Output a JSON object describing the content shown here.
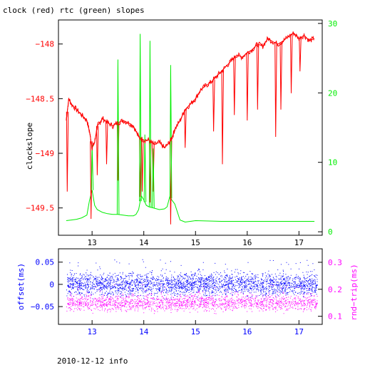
{
  "title": "clock (red) rtc (green) slopes",
  "footer": "2010-12-12 info",
  "colors": {
    "red": "#ff0000",
    "green": "#00ee00",
    "blue": "#0000ff",
    "magenta": "#ff00ff",
    "axis": "#000000"
  },
  "chart_data": [
    {
      "type": "line",
      "name": "top",
      "xlim": [
        12.35,
        17.45
      ],
      "x_ticks": [
        13,
        14,
        15,
        16,
        17
      ],
      "left_axis": {
        "label": "clockslope",
        "ylim": [
          -149.75,
          -147.78
        ],
        "ticks": [
          {
            "value": -148,
            "label": "−148"
          },
          {
            "value": -148.5,
            "label": "−148.5"
          },
          {
            "value": -149,
            "label": "−149"
          },
          {
            "value": -149.5,
            "label": "−149.5"
          }
        ]
      },
      "right_axis": {
        "ylim": [
          -0.5,
          30.5
        ],
        "ticks": [
          {
            "value": 0,
            "label": "0"
          },
          {
            "value": 10,
            "label": "10"
          },
          {
            "value": 20,
            "label": "20"
          },
          {
            "value": 30,
            "label": "30"
          }
        ]
      },
      "series": [
        {
          "color": "red",
          "axis": "left",
          "x": [
            12.5,
            12.55,
            12.6,
            12.7,
            12.8,
            12.9,
            12.95,
            13.0,
            13.05,
            13.1,
            13.15,
            13.2,
            13.3,
            13.4,
            13.5,
            13.6,
            13.7,
            13.8,
            13.9,
            14.0,
            14.1,
            14.2,
            14.3,
            14.4,
            14.5,
            14.55,
            14.6,
            14.7,
            14.8,
            14.9,
            15.0,
            15.1,
            15.2,
            15.3,
            15.4,
            15.5,
            15.6,
            15.7,
            15.8,
            15.9,
            16.0,
            16.1,
            16.2,
            16.3,
            16.4,
            16.5,
            16.6,
            16.7,
            16.8,
            16.9,
            17.0,
            17.1,
            17.2,
            17.3
          ],
          "y": [
            -148.7,
            -148.5,
            -148.55,
            -148.6,
            -148.65,
            -148.7,
            -148.8,
            -148.95,
            -148.9,
            -148.75,
            -148.72,
            -148.68,
            -148.72,
            -148.75,
            -148.72,
            -148.7,
            -148.72,
            -148.75,
            -148.85,
            -148.88,
            -148.88,
            -148.92,
            -148.9,
            -148.95,
            -148.9,
            -148.85,
            -148.78,
            -148.7,
            -148.6,
            -148.55,
            -148.5,
            -148.42,
            -148.38,
            -148.35,
            -148.3,
            -148.25,
            -148.2,
            -148.15,
            -148.1,
            -148.12,
            -148.08,
            -148.05,
            -148.0,
            -148.02,
            -147.95,
            -147.98,
            -148.0,
            -147.97,
            -147.93,
            -147.9,
            -147.95,
            -147.92,
            -147.97,
            -147.95
          ]
        },
        {
          "color": "green",
          "axis": "right",
          "x": [
            12.5,
            12.6,
            12.7,
            12.8,
            12.9,
            12.95,
            13.0,
            13.05,
            13.1,
            13.2,
            13.3,
            13.4,
            13.5,
            13.6,
            13.7,
            13.8,
            13.85,
            13.9,
            13.95,
            14.0,
            14.05,
            14.1,
            14.2,
            14.3,
            14.4,
            14.45,
            14.5,
            14.6,
            14.7,
            14.8,
            15.0,
            15.5,
            16.0,
            16.5,
            17.0,
            17.3
          ],
          "y": [
            1.6,
            1.7,
            1.8,
            2.0,
            2.4,
            4.5,
            6.0,
            3.8,
            3.2,
            2.8,
            2.6,
            2.5,
            2.5,
            2.4,
            2.3,
            2.3,
            2.5,
            3.2,
            5.2,
            4.6,
            3.8,
            3.6,
            3.4,
            3.2,
            3.3,
            3.6,
            5.0,
            4.0,
            1.7,
            1.4,
            1.6,
            1.5,
            1.5,
            1.5,
            1.5,
            1.5
          ]
        }
      ],
      "spikes": [
        {
          "color": "red",
          "axis": "left",
          "x": 12.52,
          "to": -149.35
        },
        {
          "color": "red",
          "axis": "left",
          "x": 12.98,
          "to": -149.6
        },
        {
          "color": "red",
          "axis": "left",
          "x": 13.1,
          "to": -149.2
        },
        {
          "color": "red",
          "axis": "left",
          "x": 13.28,
          "to": -149.1
        },
        {
          "color": "red",
          "axis": "left",
          "x": 13.5,
          "to": -149.25
        },
        {
          "color": "red",
          "axis": "left",
          "x": 13.93,
          "to": -149.4
        },
        {
          "color": "red",
          "axis": "left",
          "x": 13.97,
          "to": -149.35
        },
        {
          "color": "red",
          "axis": "left",
          "x": 14.12,
          "to": -149.45
        },
        {
          "color": "red",
          "axis": "left",
          "x": 14.18,
          "to": -149.35
        },
        {
          "color": "red",
          "axis": "left",
          "x": 14.52,
          "to": -149.65
        },
        {
          "color": "red",
          "axis": "left",
          "x": 14.8,
          "to": -148.95
        },
        {
          "color": "red",
          "axis": "left",
          "x": 15.35,
          "to": -148.8
        },
        {
          "color": "red",
          "axis": "left",
          "x": 15.52,
          "to": -149.1
        },
        {
          "color": "red",
          "axis": "left",
          "x": 15.75,
          "to": -148.65
        },
        {
          "color": "red",
          "axis": "left",
          "x": 16.0,
          "to": -148.7
        },
        {
          "color": "red",
          "axis": "left",
          "x": 16.2,
          "to": -148.6
        },
        {
          "color": "red",
          "axis": "left",
          "x": 16.55,
          "to": -148.85
        },
        {
          "color": "red",
          "axis": "left",
          "x": 16.65,
          "to": -148.6
        },
        {
          "color": "red",
          "axis": "left",
          "x": 16.85,
          "to": -148.45
        },
        {
          "color": "red",
          "axis": "left",
          "x": 17.02,
          "to": -148.25
        },
        {
          "color": "green",
          "axis": "right",
          "x": 13.0,
          "to": 12.5
        },
        {
          "color": "green",
          "axis": "right",
          "x": 13.5,
          "to": 24.8
        },
        {
          "color": "green",
          "axis": "right",
          "x": 13.93,
          "to": 28.5
        },
        {
          "color": "green",
          "axis": "right",
          "x": 14.02,
          "to": 14.0
        },
        {
          "color": "green",
          "axis": "right",
          "x": 14.12,
          "to": 27.5
        },
        {
          "color": "green",
          "axis": "right",
          "x": 14.18,
          "to": 12.0
        },
        {
          "color": "green",
          "axis": "right",
          "x": 14.52,
          "to": 24.0
        }
      ]
    },
    {
      "type": "scatter",
      "name": "bottom",
      "xlim": [
        12.35,
        17.45
      ],
      "x_ticks": [
        13,
        14,
        15,
        16,
        17
      ],
      "left_axis": {
        "label": "offset(ms)",
        "ylim": [
          -0.09,
          0.08
        ],
        "ticks": [
          {
            "value": 0.05,
            "label": "0.05"
          },
          {
            "value": 0,
            "label": "0"
          },
          {
            "value": -0.05,
            "label": "−0.05"
          }
        ]
      },
      "right_axis": {
        "label": "rnd−trip(ms)",
        "ylim": [
          0.07,
          0.35
        ],
        "ticks": [
          {
            "value": 0.3,
            "label": "0.3"
          },
          {
            "value": 0.2,
            "label": "0.2"
          },
          {
            "value": 0.1,
            "label": "0.1"
          }
        ]
      },
      "series": [
        {
          "color": "blue",
          "axis": "left",
          "x_range": [
            12.5,
            17.35
          ],
          "center": 0.0,
          "spread": 0.025
        },
        {
          "color": "magenta",
          "axis": "right",
          "x_range": [
            12.5,
            17.35
          ],
          "center": 0.15,
          "spread": 0.03
        }
      ]
    }
  ]
}
